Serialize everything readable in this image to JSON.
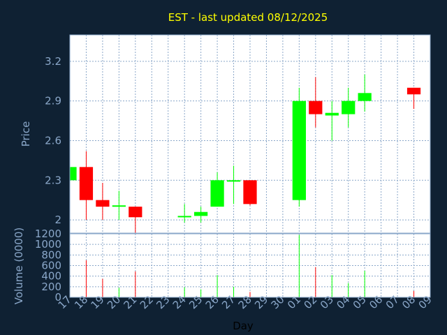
{
  "chart_data": {
    "type": "candlestick",
    "title": "EST - last updated 08/12/2025",
    "xlabel": "Day",
    "ylabel": "Price",
    "volume_label": "Volume (0000)",
    "colors": {
      "background": "#0f2133",
      "plot": "#ffffff",
      "up": "#00ff00",
      "down": "#ff0000",
      "text": "#8aa7c9",
      "title": "#ffff00"
    },
    "x_ticks": [
      "17",
      "18",
      "19",
      "20",
      "21",
      "22",
      "23",
      "24",
      "25",
      "26",
      "27",
      "28",
      "29",
      "30",
      "01",
      "02",
      "03",
      "04",
      "05",
      "06",
      "07",
      "08",
      "09"
    ],
    "price_axis": {
      "ylim": [
        1.9,
        3.4
      ],
      "ticks": [
        2,
        2.3,
        2.6,
        2.9,
        3.2
      ],
      "tick_labels": [
        "2",
        "2.3",
        "2.6",
        "2.9",
        "3.2"
      ]
    },
    "volume_axis": {
      "ylim": [
        0,
        1200
      ],
      "ticks": [
        0,
        200,
        400,
        600,
        800,
        1000,
        1200
      ],
      "tick_labels": [
        "0",
        "200",
        "400",
        "600",
        "800",
        "1000",
        "1200"
      ]
    },
    "candles": [
      {
        "day": "17",
        "open": 2.3,
        "high": 2.41,
        "low": 2.3,
        "close": 2.4
      },
      {
        "day": "18",
        "open": 2.4,
        "high": 2.52,
        "low": 2.0,
        "close": 2.15
      },
      {
        "day": "19",
        "open": 2.15,
        "high": 2.28,
        "low": 2.0,
        "close": 2.1
      },
      {
        "day": "20",
        "open": 2.1,
        "high": 2.22,
        "low": 2.0,
        "close": 2.11
      },
      {
        "day": "21",
        "open": 2.1,
        "high": 2.1,
        "low": 1.9,
        "close": 2.02
      },
      {
        "day": "24",
        "open": 2.02,
        "high": 2.12,
        "low": 1.98,
        "close": 2.03
      },
      {
        "day": "25",
        "open": 2.03,
        "high": 2.1,
        "low": 1.98,
        "close": 2.06
      },
      {
        "day": "26",
        "open": 2.1,
        "high": 2.36,
        "low": 2.1,
        "close": 2.3
      },
      {
        "day": "27",
        "open": 2.29,
        "high": 2.41,
        "low": 2.12,
        "close": 2.3
      },
      {
        "day": "28",
        "open": 2.3,
        "high": 2.3,
        "low": 2.11,
        "close": 2.12
      },
      {
        "day": "01",
        "open": 2.15,
        "high": 3.0,
        "low": 2.1,
        "close": 2.9
      },
      {
        "day": "02",
        "open": 2.9,
        "high": 3.08,
        "low": 2.7,
        "close": 2.8
      },
      {
        "day": "03",
        "open": 2.79,
        "high": 2.9,
        "low": 2.6,
        "close": 2.81
      },
      {
        "day": "04",
        "open": 2.8,
        "high": 3.0,
        "low": 2.7,
        "close": 2.9
      },
      {
        "day": "05",
        "open": 2.9,
        "high": 3.1,
        "low": 2.82,
        "close": 2.96
      },
      {
        "day": "08",
        "open": 3.0,
        "high": 3.0,
        "low": 2.84,
        "close": 2.95
      }
    ],
    "volume": [
      {
        "day": "18",
        "value": 700
      },
      {
        "day": "19",
        "value": 350
      },
      {
        "day": "20",
        "value": 180
      },
      {
        "day": "21",
        "value": 490
      },
      {
        "day": "24",
        "value": 190
      },
      {
        "day": "25",
        "value": 150
      },
      {
        "day": "26",
        "value": 420
      },
      {
        "day": "27",
        "value": 200
      },
      {
        "day": "28",
        "value": 100
      },
      {
        "day": "01",
        "value": 1180
      },
      {
        "day": "02",
        "value": 570
      },
      {
        "day": "03",
        "value": 420
      },
      {
        "day": "04",
        "value": 270
      },
      {
        "day": "05",
        "value": 500
      },
      {
        "day": "08",
        "value": 120
      }
    ]
  }
}
